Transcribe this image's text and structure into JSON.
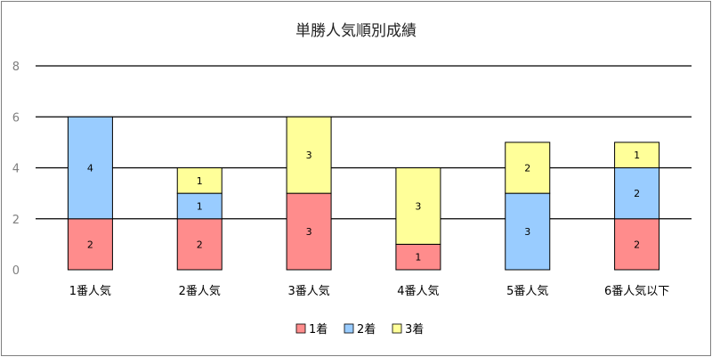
{
  "chart_data": {
    "type": "bar",
    "stacked": true,
    "title": "単勝人気順別成績",
    "categories": [
      "1番人気",
      "2番人気",
      "3番人気",
      "4番人気",
      "5番人気",
      "6番人気以下"
    ],
    "series": [
      {
        "name": "1着",
        "values": [
          2,
          2,
          3,
          1,
          0,
          2
        ],
        "color": "#ff8c8c"
      },
      {
        "name": "2着",
        "values": [
          4,
          1,
          0,
          0,
          3,
          2
        ],
        "color": "#99ccff"
      },
      {
        "name": "3着",
        "values": [
          0,
          1,
          3,
          3,
          2,
          1
        ],
        "color": "#ffff99"
      }
    ],
    "ylim": [
      0,
      8
    ],
    "yticks": [
      0,
      2,
      4,
      6,
      8
    ],
    "grid": true,
    "legend_position": "bottom",
    "xlabel": "",
    "ylabel": ""
  }
}
